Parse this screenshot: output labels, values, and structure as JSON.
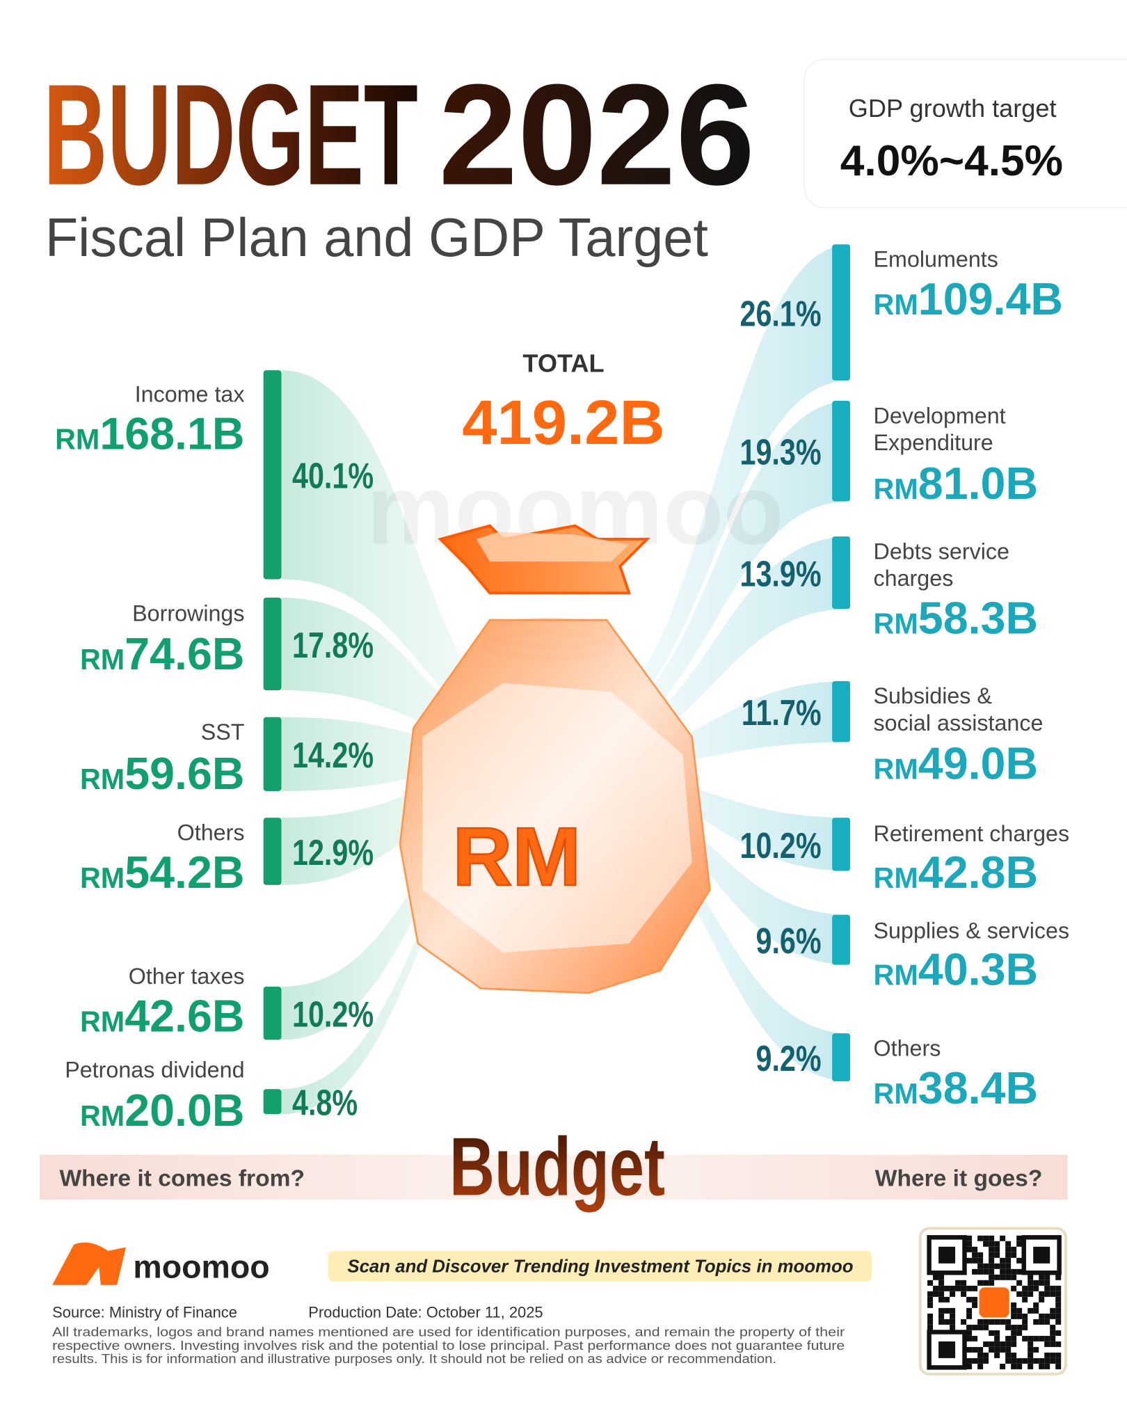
{
  "header": {
    "title": {
      "word": "BUDGET",
      "year": "2026"
    },
    "subtitle": "Fiscal Plan and GDP Target"
  },
  "gdp": {
    "label": "GDP growth target",
    "value": "4.0%~4.5%"
  },
  "total": {
    "label": "TOTAL",
    "value": "419.2B"
  },
  "currency": "RM",
  "watermark": "moomoo",
  "bag_label": "RM",
  "sources": [
    {
      "label": [
        "Income tax"
      ],
      "amount": "168.1B",
      "share": {
        "value": 40.1,
        "label": "40.1%"
      }
    },
    {
      "label": [
        "Borrowings"
      ],
      "amount": "74.6B",
      "share": {
        "value": 17.8,
        "label": "17.8%"
      }
    },
    {
      "label": [
        "SST"
      ],
      "amount": "59.6B",
      "share": {
        "value": 14.2,
        "label": "14.2%"
      }
    },
    {
      "label": [
        "Others"
      ],
      "amount": "54.2B",
      "share": {
        "value": 12.9,
        "label": "12.9%"
      }
    },
    {
      "label": [
        "Other taxes"
      ],
      "amount": "42.6B",
      "share": {
        "value": 10.2,
        "label": "10.2%"
      }
    },
    {
      "label": [
        "Petronas dividend"
      ],
      "amount": "20.0B",
      "share": {
        "value": 4.8,
        "label": "4.8%"
      }
    }
  ],
  "uses": [
    {
      "label": [
        "Emoluments"
      ],
      "amount": "109.4B",
      "share": {
        "value": 26.1,
        "label": "26.1%"
      }
    },
    {
      "label": [
        "Development",
        "Expenditure"
      ],
      "amount": "81.0B",
      "share": {
        "value": 19.3,
        "label": "19.3%"
      }
    },
    {
      "label": [
        "Debts service",
        "charges"
      ],
      "amount": "58.3B",
      "share": {
        "value": 13.9,
        "label": "13.9%"
      }
    },
    {
      "label": [
        "Subsidies &",
        "social assistance"
      ],
      "amount": "49.0B",
      "share": {
        "value": 11.7,
        "label": "11.7%"
      }
    },
    {
      "label": [
        "Retirement charges"
      ],
      "amount": "42.8B",
      "share": {
        "value": 10.2,
        "label": "10.2%"
      }
    },
    {
      "label": [
        "Supplies & services"
      ],
      "amount": "40.3B",
      "share": {
        "value": 9.6,
        "label": "9.6%"
      }
    },
    {
      "label": [
        "Others"
      ],
      "amount": "38.4B",
      "share": {
        "value": 9.2,
        "label": "9.2%"
      }
    }
  ],
  "band": {
    "left": "Where it comes from?",
    "center": "Budget",
    "right": "Where it goes?"
  },
  "footer": {
    "brand": "moomoo",
    "banner": "Scan and Discover Trending Investment Topics in moomoo",
    "source": "Source:  Ministry of Finance",
    "date": "Production Date: October 11, 2025",
    "disclaimer": [
      "All trademarks, logos and brand names mentioned are used for identification purposes, and remain the property of their",
      "respective owners. Investing involves risk and the potential to lose principal. Past performance does not guarantee future",
      "results. This is for information and illustrative purposes only. It should not be relied on as advice or recommendation."
    ]
  }
}
